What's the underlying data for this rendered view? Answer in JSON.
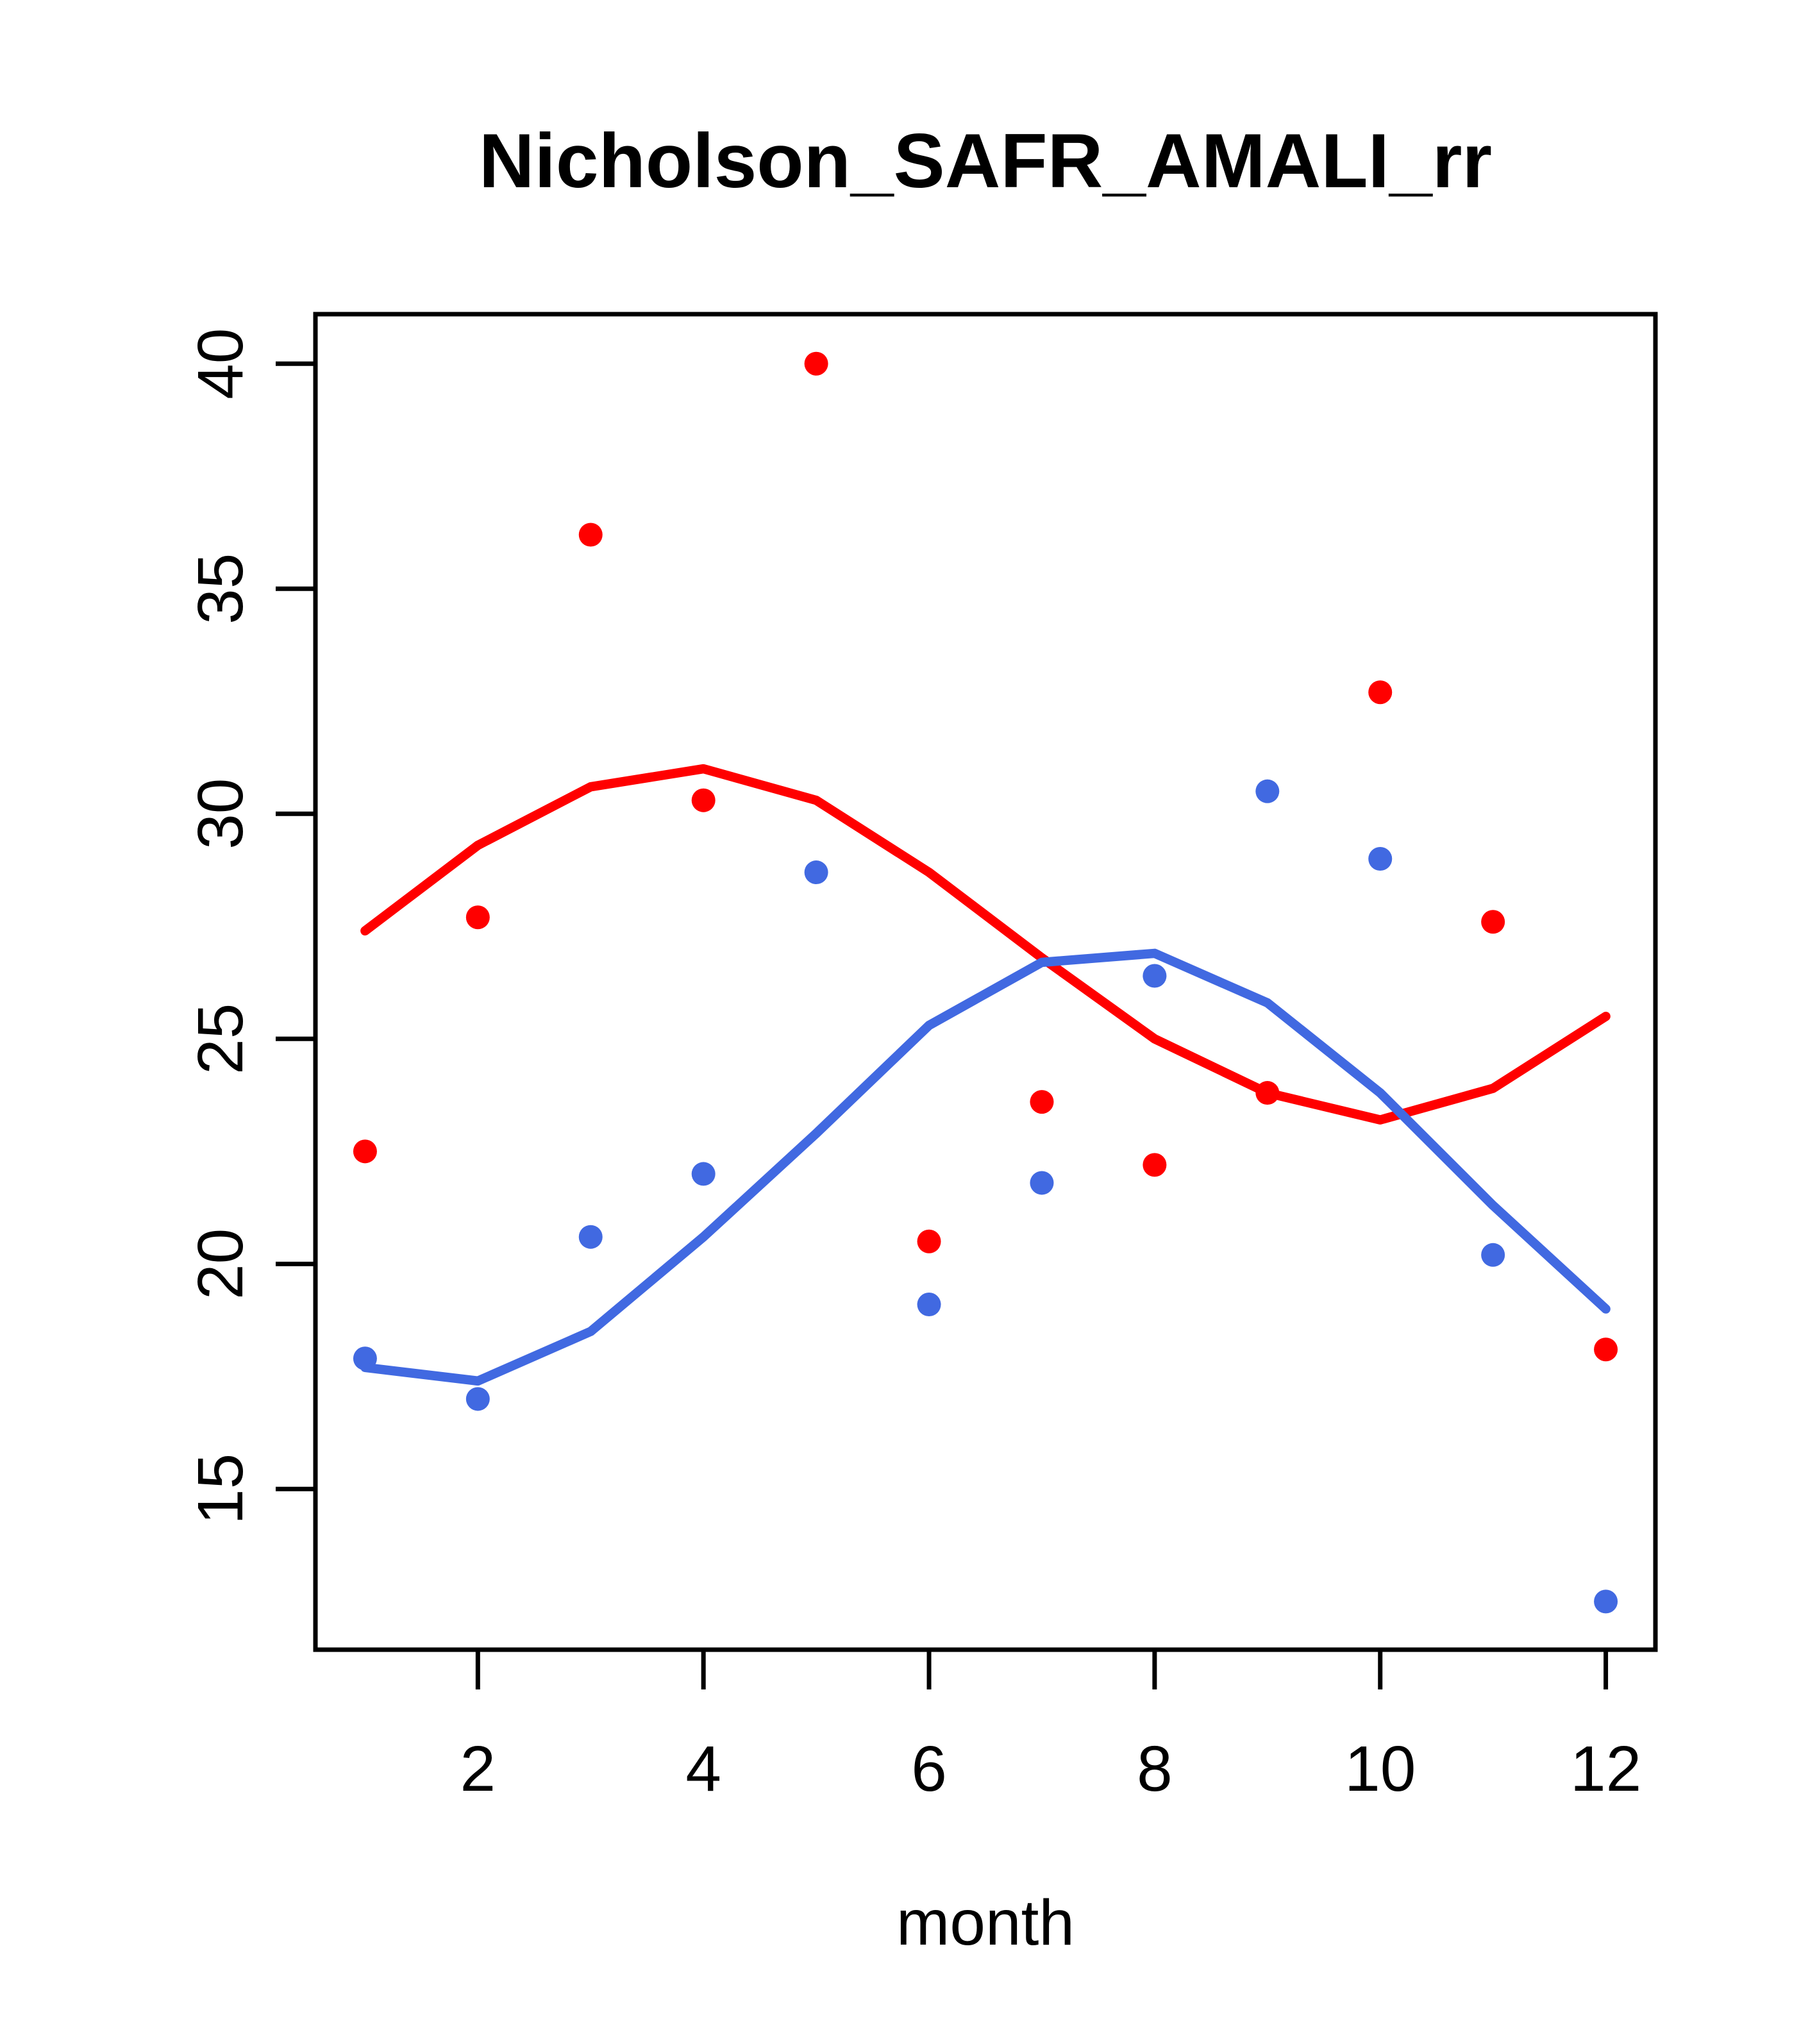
{
  "chart_data": {
    "type": "scatter",
    "title": "Nicholson_SAFR_AMALI_rr",
    "xlabel": "month",
    "ylabel": "",
    "grid": false,
    "legend": "none",
    "x": [
      1,
      2,
      3,
      4,
      5,
      6,
      7,
      8,
      9,
      10,
      11,
      12
    ],
    "xticks": [
      2,
      4,
      6,
      8,
      10,
      12
    ],
    "yticks": [
      15,
      20,
      25,
      30,
      35,
      40
    ],
    "xlim": [
      0.56,
      12.44
    ],
    "ylim": [
      11.43,
      41.1
    ],
    "colors": {
      "red": "#FF0000",
      "blue": "#4169E1",
      "axis": "#000000"
    },
    "series": [
      {
        "name": "red-points",
        "kind": "points",
        "color": "#FF0000",
        "values": [
          22.5,
          27.7,
          36.2,
          30.3,
          40.0,
          20.5,
          23.6,
          22.2,
          23.8,
          32.7,
          27.6,
          18.1
        ]
      },
      {
        "name": "red-loess-line",
        "kind": "line",
        "color": "#FF0000",
        "values": [
          27.4,
          29.3,
          30.6,
          31.0,
          30.3,
          28.7,
          26.8,
          25.0,
          23.8,
          23.2,
          23.9,
          25.5
        ]
      },
      {
        "name": "blue-points",
        "kind": "points",
        "color": "#4169E1",
        "values": [
          17.9,
          17.0,
          20.6,
          22.0,
          28.7,
          19.1,
          21.8,
          26.4,
          30.5,
          29.0,
          20.2,
          12.5
        ]
      },
      {
        "name": "blue-loess-line",
        "kind": "line",
        "color": "#4169E1",
        "values": [
          17.7,
          17.4,
          18.5,
          20.6,
          22.9,
          25.3,
          26.7,
          26.9,
          25.8,
          23.8,
          21.3,
          19.0
        ]
      }
    ]
  }
}
